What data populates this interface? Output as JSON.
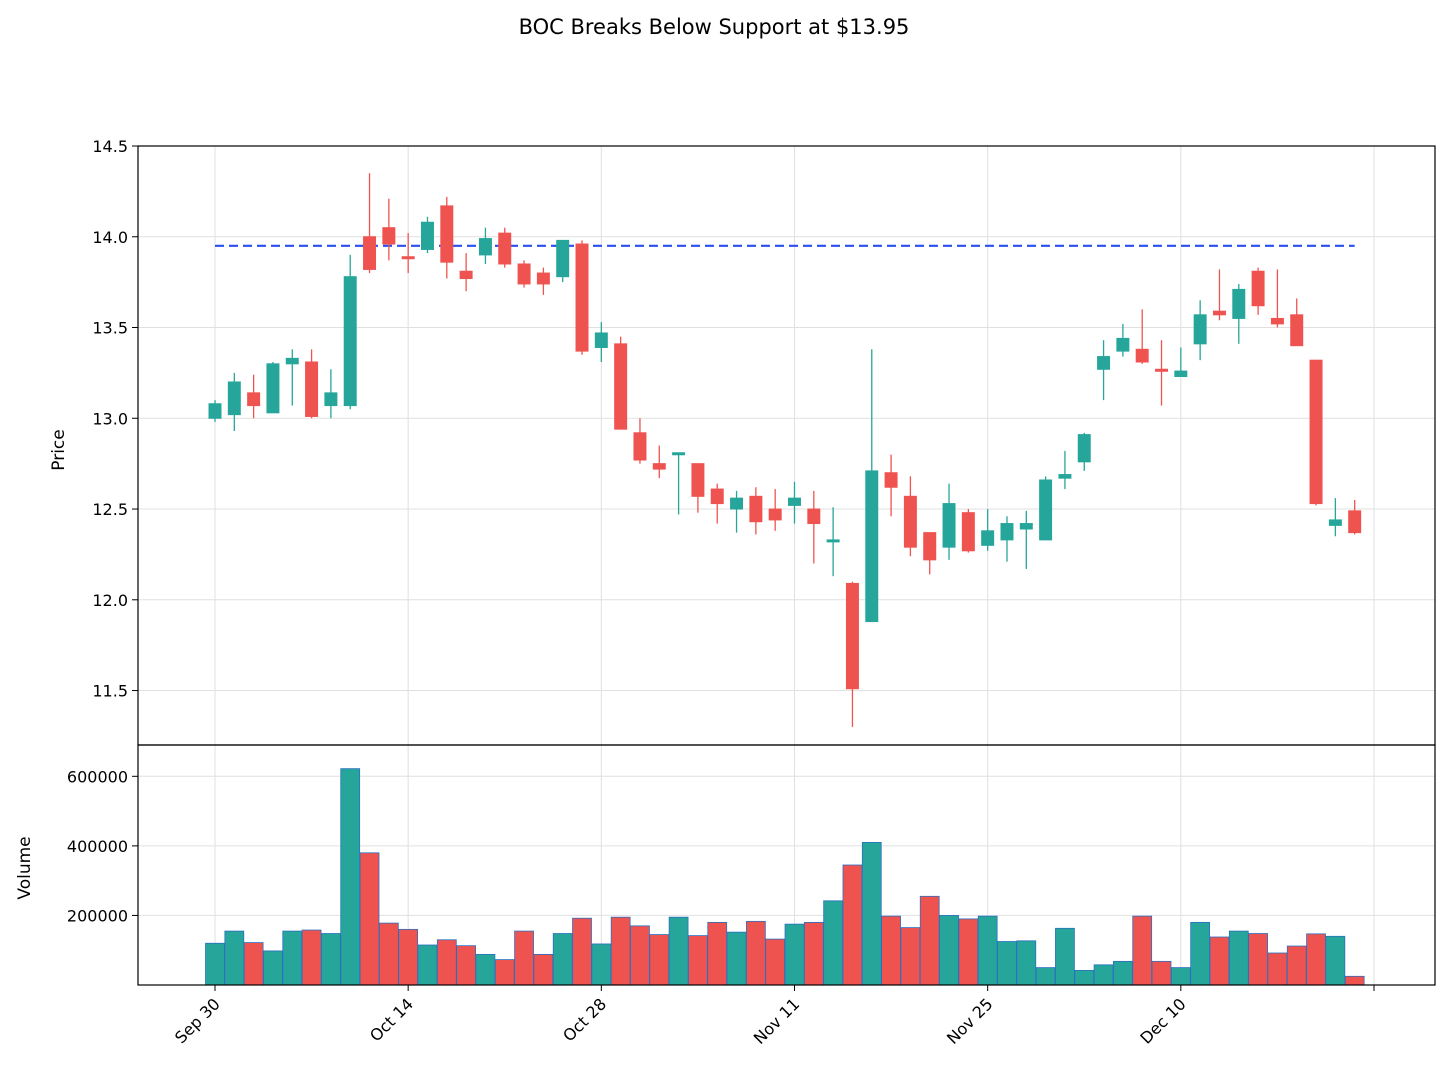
{
  "chart_data": {
    "type": "candlestick",
    "title": "BOC Breaks Below Support at $13.95",
    "price_panel": {
      "ylabel": "Price",
      "ylim": [
        11.2,
        14.5
      ],
      "yticks": [
        "11.5",
        "12.0",
        "12.5",
        "13.0",
        "13.5",
        "14.0",
        "14.5"
      ],
      "support_level": 13.95,
      "support_color": "#2a4ff0",
      "grid": true
    },
    "volume_panel": {
      "ylabel": "Volume",
      "ylim": [
        0,
        690000
      ],
      "yticks": [
        "200000",
        "400000",
        "600000"
      ],
      "grid": true
    },
    "x_tick_labels": [
      "Sep 30",
      "Oct 14",
      "Oct 28",
      "Nov 11",
      "Nov 25",
      "Dec 10"
    ],
    "colors": {
      "up": "#26a69a",
      "down": "#ef5350",
      "volume_edge": "#2a6fc0"
    },
    "series": [
      {
        "date": "Sep 30",
        "open": 13.0,
        "high": 13.1,
        "low": 12.98,
        "close": 13.08,
        "volume": 120000
      },
      {
        "date": "Oct 1",
        "open": 13.02,
        "high": 13.25,
        "low": 12.93,
        "close": 13.2,
        "volume": 155000
      },
      {
        "date": "Oct 2",
        "open": 13.14,
        "high": 13.24,
        "low": 13.0,
        "close": 13.07,
        "volume": 122000
      },
      {
        "date": "Oct 3",
        "open": 13.03,
        "high": 13.31,
        "low": 13.03,
        "close": 13.3,
        "volume": 98000
      },
      {
        "date": "Oct 4",
        "open": 13.3,
        "high": 13.38,
        "low": 13.07,
        "close": 13.33,
        "volume": 155000
      },
      {
        "date": "Oct 7",
        "open": 13.31,
        "high": 13.38,
        "low": 13.0,
        "close": 13.01,
        "volume": 158000
      },
      {
        "date": "Oct 8",
        "open": 13.07,
        "high": 13.27,
        "low": 13.0,
        "close": 13.14,
        "volume": 148000
      },
      {
        "date": "Oct 9",
        "open": 13.07,
        "high": 13.9,
        "low": 13.05,
        "close": 13.78,
        "volume": 622000
      },
      {
        "date": "Oct 10",
        "open": 14.0,
        "high": 14.35,
        "low": 13.8,
        "close": 13.82,
        "volume": 380000
      },
      {
        "date": "Oct 11",
        "open": 14.05,
        "high": 14.21,
        "low": 13.87,
        "close": 13.96,
        "volume": 178000
      },
      {
        "date": "Oct 14",
        "open": 13.89,
        "high": 14.02,
        "low": 13.8,
        "close": 13.88,
        "volume": 160000
      },
      {
        "date": "Oct 15",
        "open": 13.93,
        "high": 14.11,
        "low": 13.91,
        "close": 14.08,
        "volume": 115000
      },
      {
        "date": "Oct 16",
        "open": 14.17,
        "high": 14.22,
        "low": 13.77,
        "close": 13.86,
        "volume": 130000
      },
      {
        "date": "Oct 17",
        "open": 13.81,
        "high": 13.91,
        "low": 13.7,
        "close": 13.77,
        "volume": 113000
      },
      {
        "date": "Oct 18",
        "open": 13.9,
        "high": 14.05,
        "low": 13.85,
        "close": 13.99,
        "volume": 88000
      },
      {
        "date": "Oct 21",
        "open": 14.02,
        "high": 14.05,
        "low": 13.83,
        "close": 13.85,
        "volume": 73000
      },
      {
        "date": "Oct 22",
        "open": 13.85,
        "high": 13.87,
        "low": 13.72,
        "close": 13.74,
        "volume": 155000
      },
      {
        "date": "Oct 23",
        "open": 13.8,
        "high": 13.83,
        "low": 13.68,
        "close": 13.74,
        "volume": 88000
      },
      {
        "date": "Oct 24",
        "open": 13.78,
        "high": 13.98,
        "low": 13.75,
        "close": 13.98,
        "volume": 148000
      },
      {
        "date": "Oct 25",
        "open": 13.96,
        "high": 13.98,
        "low": 13.35,
        "close": 13.37,
        "volume": 192000
      },
      {
        "date": "Oct 28",
        "open": 13.39,
        "high": 13.53,
        "low": 13.31,
        "close": 13.47,
        "volume": 118000
      },
      {
        "date": "Oct 29",
        "open": 13.41,
        "high": 13.45,
        "low": 12.94,
        "close": 12.94,
        "volume": 195000
      },
      {
        "date": "Oct 30",
        "open": 12.92,
        "high": 13.0,
        "low": 12.75,
        "close": 12.77,
        "volume": 170000
      },
      {
        "date": "Oct 31",
        "open": 12.75,
        "high": 12.85,
        "low": 12.67,
        "close": 12.72,
        "volume": 145000
      },
      {
        "date": "Nov 1",
        "open": 12.8,
        "high": 12.81,
        "low": 12.47,
        "close": 12.81,
        "volume": 195000
      },
      {
        "date": "Nov 4",
        "open": 12.75,
        "high": 12.75,
        "low": 12.48,
        "close": 12.57,
        "volume": 142000
      },
      {
        "date": "Nov 5",
        "open": 12.61,
        "high": 12.64,
        "low": 12.42,
        "close": 12.53,
        "volume": 180000
      },
      {
        "date": "Nov 6",
        "open": 12.5,
        "high": 12.6,
        "low": 12.37,
        "close": 12.56,
        "volume": 152000
      },
      {
        "date": "Nov 7",
        "open": 12.57,
        "high": 12.62,
        "low": 12.36,
        "close": 12.43,
        "volume": 183000
      },
      {
        "date": "Nov 8",
        "open": 12.5,
        "high": 12.61,
        "low": 12.38,
        "close": 12.44,
        "volume": 132000
      },
      {
        "date": "Nov 11",
        "open": 12.52,
        "high": 12.65,
        "low": 12.42,
        "close": 12.56,
        "volume": 175000
      },
      {
        "date": "Nov 12",
        "open": 12.5,
        "high": 12.6,
        "low": 12.2,
        "close": 12.42,
        "volume": 180000
      },
      {
        "date": "Nov 13",
        "open": 12.33,
        "high": 12.51,
        "low": 12.13,
        "close": 12.33,
        "volume": 242000
      },
      {
        "date": "Nov 14",
        "open": 12.09,
        "high": 12.1,
        "low": 11.3,
        "close": 11.51,
        "volume": 345000
      },
      {
        "date": "Nov 15",
        "open": 11.88,
        "high": 13.38,
        "low": 11.88,
        "close": 12.71,
        "volume": 410000
      },
      {
        "date": "Nov 18",
        "open": 12.7,
        "high": 12.8,
        "low": 12.46,
        "close": 12.62,
        "volume": 198000
      },
      {
        "date": "Nov 19",
        "open": 12.57,
        "high": 12.68,
        "low": 12.24,
        "close": 12.29,
        "volume": 165000
      },
      {
        "date": "Nov 20",
        "open": 12.37,
        "high": 12.37,
        "low": 12.14,
        "close": 12.22,
        "volume": 255000
      },
      {
        "date": "Nov 21",
        "open": 12.29,
        "high": 12.64,
        "low": 12.22,
        "close": 12.53,
        "volume": 200000
      },
      {
        "date": "Nov 22",
        "open": 12.48,
        "high": 12.5,
        "low": 12.26,
        "close": 12.27,
        "volume": 190000
      },
      {
        "date": "Nov 25",
        "open": 12.3,
        "high": 12.5,
        "low": 12.27,
        "close": 12.38,
        "volume": 198000
      },
      {
        "date": "Nov 26",
        "open": 12.33,
        "high": 12.46,
        "low": 12.21,
        "close": 12.42,
        "volume": 125000
      },
      {
        "date": "Nov 27",
        "open": 12.39,
        "high": 12.49,
        "low": 12.17,
        "close": 12.42,
        "volume": 127000
      },
      {
        "date": "Nov 29",
        "open": 12.33,
        "high": 12.68,
        "low": 12.33,
        "close": 12.66,
        "volume": 50000
      },
      {
        "date": "Dec 2",
        "open": 12.67,
        "high": 12.82,
        "low": 12.61,
        "close": 12.69,
        "volume": 163000
      },
      {
        "date": "Dec 3",
        "open": 12.76,
        "high": 12.92,
        "low": 12.71,
        "close": 12.91,
        "volume": 42000
      },
      {
        "date": "Dec 4",
        "open": 13.27,
        "high": 13.43,
        "low": 13.1,
        "close": 13.34,
        "volume": 58000
      },
      {
        "date": "Dec 5",
        "open": 13.37,
        "high": 13.52,
        "low": 13.34,
        "close": 13.44,
        "volume": 68000
      },
      {
        "date": "Dec 6",
        "open": 13.38,
        "high": 13.6,
        "low": 13.3,
        "close": 13.31,
        "volume": 198000
      },
      {
        "date": "Dec 9",
        "open": 13.27,
        "high": 13.43,
        "low": 13.07,
        "close": 13.26,
        "volume": 68000
      },
      {
        "date": "Dec 10",
        "open": 13.23,
        "high": 13.39,
        "low": 13.23,
        "close": 13.26,
        "volume": 50000
      },
      {
        "date": "Dec 11",
        "open": 13.41,
        "high": 13.65,
        "low": 13.32,
        "close": 13.57,
        "volume": 180000
      },
      {
        "date": "Dec 12",
        "open": 13.59,
        "high": 13.82,
        "low": 13.54,
        "close": 13.57,
        "volume": 138000
      },
      {
        "date": "Dec 13",
        "open": 13.55,
        "high": 13.74,
        "low": 13.41,
        "close": 13.71,
        "volume": 155000
      },
      {
        "date": "Dec 16",
        "open": 13.81,
        "high": 13.83,
        "low": 13.57,
        "close": 13.62,
        "volume": 148000
      },
      {
        "date": "Dec 17",
        "open": 13.55,
        "high": 13.82,
        "low": 13.5,
        "close": 13.52,
        "volume": 92000
      },
      {
        "date": "Dec 18",
        "open": 13.57,
        "high": 13.66,
        "low": 13.4,
        "close": 13.4,
        "volume": 112000
      },
      {
        "date": "Dec 19",
        "open": 13.32,
        "high": 13.32,
        "low": 12.52,
        "close": 12.53,
        "volume": 147000
      },
      {
        "date": "Dec 20",
        "open": 12.41,
        "high": 12.56,
        "low": 12.35,
        "close": 12.44,
        "volume": 140000
      },
      {
        "date": "Dec 23",
        "open": 12.49,
        "high": 12.55,
        "low": 12.36,
        "close": 12.37,
        "volume": 25000
      }
    ]
  }
}
